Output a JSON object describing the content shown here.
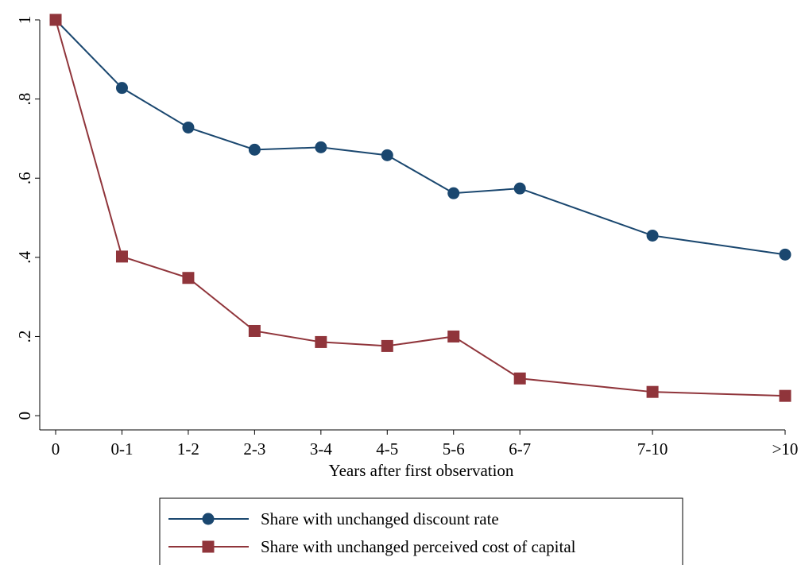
{
  "chart_data": {
    "type": "line",
    "x_label": "Years after first observation",
    "x": [
      0,
      1,
      2,
      3,
      4,
      5,
      6,
      7,
      9,
      11
    ],
    "xticks": [
      0,
      {
        "value": 1,
        "label": "0-1"
      },
      {
        "value": 2,
        "label": "1-2"
      },
      {
        "value": 3,
        "label": "2-3"
      },
      {
        "value": 4,
        "label": "3-4"
      },
      {
        "value": 5,
        "label": "4-5"
      },
      {
        "value": 6,
        "label": "5-6"
      },
      {
        "value": 7,
        "label": "6-7"
      },
      {
        "value": 9,
        "label": "7-10"
      },
      {
        "value": 11,
        "label": ">10"
      }
    ],
    "xlim": [
      -0.24,
      11
    ],
    "ylim": [
      -0.036,
      1
    ],
    "yticks": [
      0,
      {
        "value": 0.2,
        "label": ".2"
      },
      {
        "value": 0.4,
        "label": ".4"
      },
      {
        "value": 0.6,
        "label": ".6"
      },
      {
        "value": 0.8,
        "label": ".8"
      },
      1
    ],
    "grid": false,
    "legend": "bottom",
    "series": [
      {
        "name": "Share with unchanged discount rate",
        "color": "#1a476f",
        "marker": "circle",
        "values": [
          1,
          0.828,
          0.728,
          0.672,
          0.678,
          0.658,
          0.562,
          0.574,
          0.455,
          0.407
        ]
      },
      {
        "name": "Share with unchanged perceived cost of capital",
        "color": "#90353b",
        "marker": "square",
        "values": [
          1,
          0.402,
          0.348,
          0.214,
          0.186,
          0.176,
          0.2,
          0.094,
          0.06,
          0.05
        ]
      }
    ]
  }
}
